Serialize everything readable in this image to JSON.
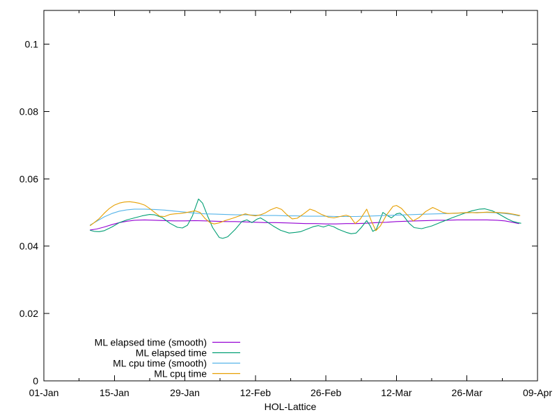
{
  "window": {
    "background": "#ffffff"
  },
  "chart_data": {
    "type": "line",
    "title": "",
    "xlabel": "HOL-Lattice",
    "ylabel": "",
    "grid": false,
    "legend_position": "inside-bottom-left",
    "x_axis": {
      "unit": "date (days since 01-Jan)",
      "range_days": [
        0,
        98
      ],
      "major_ticks": [
        {
          "day": 0,
          "label": "01-Jan"
        },
        {
          "day": 14,
          "label": "15-Jan"
        },
        {
          "day": 28,
          "label": "29-Jan"
        },
        {
          "day": 42,
          "label": "12-Feb"
        },
        {
          "day": 56,
          "label": "26-Feb"
        },
        {
          "day": 70,
          "label": "12-Mar"
        },
        {
          "day": 84,
          "label": "26-Mar"
        },
        {
          "day": 98,
          "label": "09-Apr"
        }
      ],
      "minor_tick_days": [
        7,
        21,
        35,
        49,
        63,
        77,
        91
      ]
    },
    "y_axis": {
      "range": [
        0,
        0.11
      ],
      "major_ticks": [
        {
          "value": 0.0,
          "label": "0"
        },
        {
          "value": 0.02,
          "label": "0.02"
        },
        {
          "value": 0.04,
          "label": "0.04"
        },
        {
          "value": 0.06,
          "label": "0.06"
        },
        {
          "value": 0.08,
          "label": "0.08"
        },
        {
          "value": 0.1,
          "label": "0.1"
        }
      ]
    },
    "series": [
      {
        "name": "ML elapsed time (smooth)",
        "color": "#9400D3",
        "points": [
          [
            9.2,
            0.0448
          ],
          [
            10.5,
            0.0451
          ],
          [
            12,
            0.0457
          ],
          [
            13.5,
            0.0464
          ],
          [
            15,
            0.047
          ],
          [
            16.5,
            0.0474
          ],
          [
            18,
            0.0477
          ],
          [
            20,
            0.0478
          ],
          [
            22,
            0.0477
          ],
          [
            24,
            0.0476
          ],
          [
            26,
            0.0475
          ],
          [
            28,
            0.0475
          ],
          [
            30,
            0.0476
          ],
          [
            32,
            0.0475
          ],
          [
            34,
            0.0474
          ],
          [
            36,
            0.0473
          ],
          [
            38,
            0.0473
          ],
          [
            40,
            0.0472
          ],
          [
            42,
            0.0471
          ],
          [
            44,
            0.047
          ],
          [
            46,
            0.047
          ],
          [
            48,
            0.0469
          ],
          [
            50,
            0.0468
          ],
          [
            52,
            0.0467
          ],
          [
            54,
            0.0467
          ],
          [
            56,
            0.0466
          ],
          [
            58,
            0.0466
          ],
          [
            60,
            0.0467
          ],
          [
            62,
            0.0467
          ],
          [
            64,
            0.0468
          ],
          [
            66,
            0.047
          ],
          [
            68,
            0.0471
          ],
          [
            70,
            0.0473
          ],
          [
            72,
            0.0474
          ],
          [
            74,
            0.0475
          ],
          [
            76,
            0.0476
          ],
          [
            78,
            0.0477
          ],
          [
            80,
            0.0477
          ],
          [
            82,
            0.0478
          ],
          [
            84,
            0.0478
          ],
          [
            86,
            0.0478
          ],
          [
            88,
            0.0478
          ],
          [
            90,
            0.0477
          ],
          [
            91.5,
            0.0475
          ],
          [
            93,
            0.0471
          ],
          [
            94.3,
            0.0467
          ]
        ]
      },
      {
        "name": "ML elapsed time",
        "color": "#009E73",
        "points": [
          [
            9.2,
            0.0447
          ],
          [
            10,
            0.0444
          ],
          [
            11,
            0.0443
          ],
          [
            12,
            0.0446
          ],
          [
            13.5,
            0.0457
          ],
          [
            15,
            0.047
          ],
          [
            16.5,
            0.0478
          ],
          [
            18,
            0.0484
          ],
          [
            19.5,
            0.049
          ],
          [
            21,
            0.0494
          ],
          [
            22,
            0.0493
          ],
          [
            23.5,
            0.0485
          ],
          [
            25,
            0.0468
          ],
          [
            26.5,
            0.0456
          ],
          [
            27.5,
            0.0454
          ],
          [
            28.5,
            0.0462
          ],
          [
            29.5,
            0.049
          ],
          [
            30.7,
            0.054
          ],
          [
            31.5,
            0.0528
          ],
          [
            32.5,
            0.049
          ],
          [
            33.5,
            0.0455
          ],
          [
            34.8,
            0.0426
          ],
          [
            35.5,
            0.0423
          ],
          [
            36.5,
            0.0428
          ],
          [
            38,
            0.045
          ],
          [
            39.3,
            0.0473
          ],
          [
            40.3,
            0.0478
          ],
          [
            41.3,
            0.047
          ],
          [
            42.3,
            0.048
          ],
          [
            43,
            0.0484
          ],
          [
            44,
            0.0475
          ],
          [
            45.5,
            0.046
          ],
          [
            47,
            0.0447
          ],
          [
            48.7,
            0.0439
          ],
          [
            50,
            0.0441
          ],
          [
            51,
            0.0443
          ],
          [
            52.5,
            0.0452
          ],
          [
            53.5,
            0.0458
          ],
          [
            54.5,
            0.0461
          ],
          [
            55.5,
            0.0457
          ],
          [
            56.5,
            0.0462
          ],
          [
            57.5,
            0.0458
          ],
          [
            58.5,
            0.045
          ],
          [
            60,
            0.0441
          ],
          [
            61,
            0.0437
          ],
          [
            62,
            0.0439
          ],
          [
            63,
            0.0455
          ],
          [
            64.1,
            0.0476
          ],
          [
            64.8,
            0.046
          ],
          [
            65.3,
            0.0444
          ],
          [
            66,
            0.045
          ],
          [
            67.3,
            0.05
          ],
          [
            68.3,
            0.049
          ],
          [
            69,
            0.0484
          ],
          [
            70,
            0.0496
          ],
          [
            70.7,
            0.0498
          ],
          [
            71.5,
            0.0488
          ],
          [
            72.5,
            0.0468
          ],
          [
            73.5,
            0.0455
          ],
          [
            75,
            0.0452
          ],
          [
            77,
            0.046
          ],
          [
            79,
            0.0472
          ],
          [
            81,
            0.0484
          ],
          [
            83,
            0.0495
          ],
          [
            85,
            0.0505
          ],
          [
            86.5,
            0.051
          ],
          [
            87.5,
            0.0511
          ],
          [
            89,
            0.0505
          ],
          [
            90.5,
            0.0494
          ],
          [
            92,
            0.0481
          ],
          [
            93,
            0.0474
          ],
          [
            94,
            0.047
          ],
          [
            94.7,
            0.0468
          ]
        ]
      },
      {
        "name": "ML cpu time (smooth)",
        "color": "#56B4E9",
        "points": [
          [
            9.2,
            0.0463
          ],
          [
            10.5,
            0.0474
          ],
          [
            12,
            0.0487
          ],
          [
            13.5,
            0.0497
          ],
          [
            15,
            0.0504
          ],
          [
            16.5,
            0.0508
          ],
          [
            18,
            0.051
          ],
          [
            20,
            0.051
          ],
          [
            22,
            0.0509
          ],
          [
            24,
            0.0507
          ],
          [
            26,
            0.0504
          ],
          [
            28,
            0.0501
          ],
          [
            30,
            0.0498
          ],
          [
            32,
            0.0496
          ],
          [
            34,
            0.0495
          ],
          [
            36,
            0.0494
          ],
          [
            38,
            0.0493
          ],
          [
            40,
            0.0493
          ],
          [
            42,
            0.0492
          ],
          [
            44,
            0.0491
          ],
          [
            46,
            0.0491
          ],
          [
            48,
            0.049
          ],
          [
            50,
            0.049
          ],
          [
            52,
            0.0489
          ],
          [
            54,
            0.0489
          ],
          [
            56,
            0.0489
          ],
          [
            58,
            0.0488
          ],
          [
            60,
            0.0488
          ],
          [
            62,
            0.0488
          ],
          [
            64,
            0.0489
          ],
          [
            66,
            0.049
          ],
          [
            68,
            0.0491
          ],
          [
            70,
            0.0492
          ],
          [
            72,
            0.0493
          ],
          [
            74,
            0.0494
          ],
          [
            76,
            0.0495
          ],
          [
            78,
            0.0496
          ],
          [
            80,
            0.0497
          ],
          [
            82,
            0.0498
          ],
          [
            84,
            0.0499
          ],
          [
            86,
            0.05
          ],
          [
            88,
            0.05
          ],
          [
            90,
            0.0499
          ],
          [
            91.5,
            0.0497
          ],
          [
            93,
            0.0494
          ],
          [
            94.3,
            0.049
          ]
        ]
      },
      {
        "name": "ML cpu time",
        "color": "#E69F00",
        "points": [
          [
            9.2,
            0.0461
          ],
          [
            10,
            0.047
          ],
          [
            11,
            0.0482
          ],
          [
            12,
            0.0498
          ],
          [
            13,
            0.0512
          ],
          [
            14,
            0.0522
          ],
          [
            15,
            0.0528
          ],
          [
            16,
            0.0531
          ],
          [
            17,
            0.0532
          ],
          [
            18,
            0.053
          ],
          [
            19,
            0.0527
          ],
          [
            20,
            0.0522
          ],
          [
            21,
            0.0512
          ],
          [
            22,
            0.05
          ],
          [
            23,
            0.0489
          ],
          [
            24,
            0.0488
          ],
          [
            25,
            0.0494
          ],
          [
            26,
            0.0496
          ],
          [
            27,
            0.0497
          ],
          [
            28,
            0.0499
          ],
          [
            29,
            0.0502
          ],
          [
            30,
            0.0505
          ],
          [
            31,
            0.05
          ],
          [
            32,
            0.0482
          ],
          [
            33,
            0.047
          ],
          [
            33.8,
            0.0466
          ],
          [
            34.8,
            0.0469
          ],
          [
            36,
            0.0476
          ],
          [
            37.5,
            0.0483
          ],
          [
            39,
            0.0491
          ],
          [
            40,
            0.0496
          ],
          [
            41,
            0.0492
          ],
          [
            42,
            0.049
          ],
          [
            43,
            0.0493
          ],
          [
            44,
            0.0499
          ],
          [
            45,
            0.0508
          ],
          [
            46.2,
            0.0515
          ],
          [
            47.2,
            0.0509
          ],
          [
            48.2,
            0.0494
          ],
          [
            49.3,
            0.0481
          ],
          [
            50.3,
            0.0483
          ],
          [
            51.5,
            0.0495
          ],
          [
            52.8,
            0.051
          ],
          [
            53.8,
            0.0505
          ],
          [
            55,
            0.0495
          ],
          [
            56.5,
            0.0486
          ],
          [
            57.6,
            0.0484
          ],
          [
            58.8,
            0.0488
          ],
          [
            60,
            0.0492
          ],
          [
            60.8,
            0.0488
          ],
          [
            61.8,
            0.0467
          ],
          [
            62.8,
            0.048
          ],
          [
            64.1,
            0.051
          ],
          [
            65,
            0.0475
          ],
          [
            65.9,
            0.0446
          ],
          [
            66.8,
            0.046
          ],
          [
            68,
            0.0492
          ],
          [
            69.3,
            0.0518
          ],
          [
            70,
            0.0521
          ],
          [
            71,
            0.0512
          ],
          [
            72,
            0.0495
          ],
          [
            73.3,
            0.0475
          ],
          [
            74.5,
            0.0485
          ],
          [
            75.8,
            0.0503
          ],
          [
            77.2,
            0.0515
          ],
          [
            78.2,
            0.0508
          ],
          [
            79.2,
            0.05
          ],
          [
            80.2,
            0.0497
          ],
          [
            82,
            0.0498
          ],
          [
            84,
            0.05
          ],
          [
            86,
            0.0499
          ],
          [
            88,
            0.0501
          ],
          [
            90,
            0.05
          ],
          [
            92,
            0.0498
          ],
          [
            93.5,
            0.0494
          ],
          [
            94.5,
            0.0491
          ]
        ]
      }
    ]
  }
}
